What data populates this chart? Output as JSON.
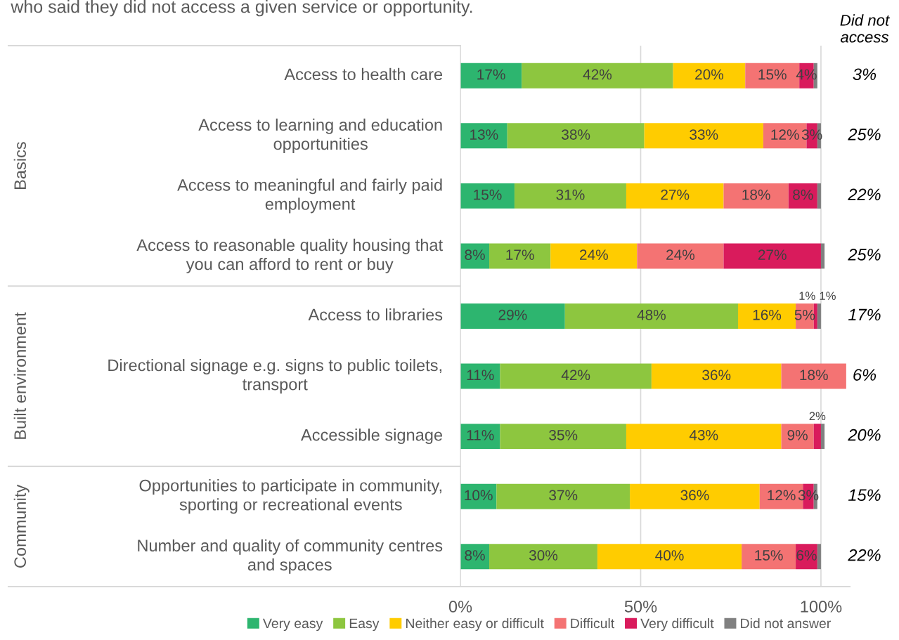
{
  "chart_data": {
    "type": "bar",
    "orientation": "horizontal",
    "stacked": true,
    "subtitle": "who said they did not access a given service or opportunity.",
    "categories": [
      "Access to health care",
      "Access to learning and education\nopportunities",
      "Access to meaningful and fairly paid\nemployment",
      "Access to reasonable quality housing that\nyou can afford to rent or buy",
      "Access to libraries",
      "Directional signage e.g. signs to public toilets,\ntransport",
      "Accessible signage",
      "Opportunities to participate in community,\nsporting or recreational events",
      "Number and quality of community centres\nand spaces"
    ],
    "series": [
      {
        "name": "Very easy",
        "color": "#2db56f",
        "values": [
          17,
          13,
          15,
          8,
          29,
          11,
          11,
          10,
          8
        ],
        "value_labels": [
          "17%",
          "13%",
          "15%",
          "8%",
          "29%",
          "11%",
          "11%",
          "10%",
          "8%"
        ]
      },
      {
        "name": "Easy",
        "color": "#8dc63f",
        "values": [
          42,
          38,
          31,
          17,
          48,
          42,
          35,
          37,
          30
        ],
        "value_labels": [
          "42%",
          "38%",
          "31%",
          "17%",
          "48%",
          "42%",
          "35%",
          "37%",
          "30%"
        ]
      },
      {
        "name": "Neither easy or difficult",
        "color": "#ffcc00",
        "values": [
          20,
          33,
          27,
          24,
          16,
          36,
          43,
          36,
          40
        ],
        "value_labels": [
          "20%",
          "33%",
          "27%",
          "24%",
          "16%",
          "36%",
          "43%",
          "36%",
          "40%"
        ]
      },
      {
        "name": "Difficult",
        "color": "#f47373",
        "values": [
          15,
          12,
          18,
          24,
          5,
          18,
          9,
          12,
          15
        ],
        "value_labels": [
          "15%",
          "12%",
          "18%",
          "24%",
          "5%",
          "18%",
          "9%",
          "12%",
          "15%"
        ]
      },
      {
        "name": "Very difficult",
        "color": "#d91b5c",
        "values": [
          4,
          3,
          8,
          27,
          1,
          null,
          2,
          3,
          6
        ],
        "value_labels": [
          "4%",
          "3%",
          "8%",
          "27%",
          "1%",
          null,
          "2%",
          "3%",
          "6%"
        ]
      },
      {
        "name": "Did not answer",
        "color": "#808080",
        "values": [
          1,
          1,
          1,
          1,
          1,
          null,
          1,
          1,
          1
        ],
        "value_labels": [
          null,
          null,
          null,
          null,
          "1%",
          null,
          null,
          null,
          null
        ]
      }
    ],
    "xlim": [
      0,
      108
    ],
    "xticks": [
      {
        "value": 0,
        "label": "0%"
      },
      {
        "value": 50,
        "label": "50%"
      },
      {
        "value": 100,
        "label": "100%"
      }
    ],
    "grid": "x",
    "legend": "bottom",
    "annotations": [
      "Did not access",
      "Basics",
      "Built environment",
      "Community",
      "3%",
      "25%",
      "22%",
      "25%",
      "17%",
      "6%",
      "20%",
      "15%",
      "22%"
    ]
  }
}
